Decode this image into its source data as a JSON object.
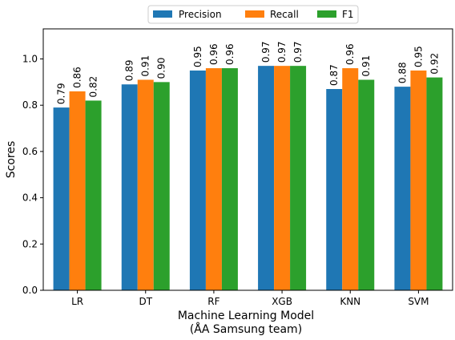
{
  "chart_data": {
    "type": "bar",
    "categories": [
      "LR",
      "DT",
      "RF",
      "XGB",
      "KNN",
      "SVM"
    ],
    "series": [
      {
        "name": "Precision",
        "color": "#1f77b4",
        "values": [
          0.79,
          0.89,
          0.95,
          0.97,
          0.87,
          0.88
        ],
        "labels": [
          "0.79",
          "0.89",
          "0.95",
          "0.97",
          "0.87",
          "0.88"
        ]
      },
      {
        "name": "Recall",
        "color": "#ff7f0e",
        "values": [
          0.86,
          0.91,
          0.96,
          0.97,
          0.96,
          0.95
        ],
        "labels": [
          "0.86",
          "0.91",
          "0.96",
          "0.97",
          "0.96",
          "0.95"
        ]
      },
      {
        "name": "F1",
        "color": "#2ca02c",
        "values": [
          0.82,
          0.9,
          0.96,
          0.97,
          0.91,
          0.92
        ],
        "labels": [
          "0.82",
          "0.90",
          "0.96",
          "0.97",
          "0.91",
          "0.92"
        ]
      }
    ],
    "xlabel": "Machine Learning Model",
    "xlabel_line2": "(ÅA Samsung team)",
    "ylabel": "Scores",
    "ylim": [
      0,
      1.13
    ],
    "yticks": [
      "0.0",
      "0.2",
      "0.4",
      "0.6",
      "0.8",
      "1.0"
    ],
    "grid": false,
    "legend_position": "top-center"
  }
}
